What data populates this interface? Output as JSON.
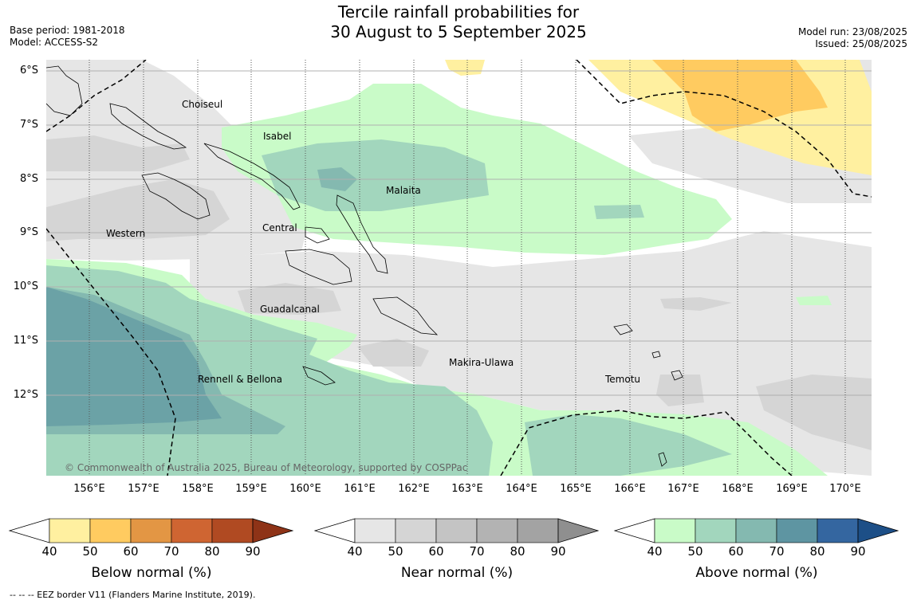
{
  "title_line1": "Tercile rainfall probabilities for",
  "title_line2": "30 August to 5 September 2025",
  "base_period": "Base period: 1981-2018",
  "model": "Model: ACCESS-S2",
  "model_run": "Model run: 23/08/2025",
  "issued": "Issued: 25/08/2025",
  "lat_labels": [
    "6°S",
    "7°S",
    "8°S",
    "9°S",
    "10°S",
    "11°S",
    "12°S"
  ],
  "lon_labels": [
    "156°E",
    "157°E",
    "158°E",
    "159°E",
    "160°E",
    "161°E",
    "162°E",
    "163°E",
    "164°E",
    "165°E",
    "166°E",
    "167°E",
    "168°E",
    "169°E",
    "170°E"
  ],
  "regions": {
    "choiseul": "Choiseul",
    "isabel": "Isabel",
    "malaita": "Malaita",
    "western": "Western",
    "central": "Central",
    "guadalcanal": "Guadalcanal",
    "makira": "Makira-Ulawa",
    "temotu": "Temotu",
    "rennell": "Rennell & Bellona"
  },
  "copyright": "© Commonwealth of Australia 2025, Bureau of Meteorology, supported by COSPPac",
  "colorbars": [
    {
      "title": "Below normal (%)",
      "ticks": [
        "40",
        "50",
        "60",
        "70",
        "80",
        "90"
      ],
      "colors": [
        "#fff0a0",
        "#ffcb60",
        "#e39644",
        "#cf6532",
        "#b04a22",
        "#8e3317"
      ]
    },
    {
      "title": "Near normal (%)",
      "ticks": [
        "40",
        "50",
        "60",
        "70",
        "80",
        "90"
      ],
      "colors": [
        "#e6e6e6",
        "#d5d5d5",
        "#c4c4c4",
        "#b3b3b3",
        "#a3a3a3",
        "#8f8f8f"
      ]
    },
    {
      "title": "Above normal (%)",
      "ticks": [
        "40",
        "50",
        "60",
        "70",
        "80",
        "90"
      ],
      "colors": [
        "#c9fbc8",
        "#a2d6bd",
        "#84b9b0",
        "#5e95a2",
        "#3466a0",
        "#1d4f87"
      ]
    }
  ],
  "footnote": "--  --  -- EEZ border V11 (Flanders Marine Institute, 2019)."
}
